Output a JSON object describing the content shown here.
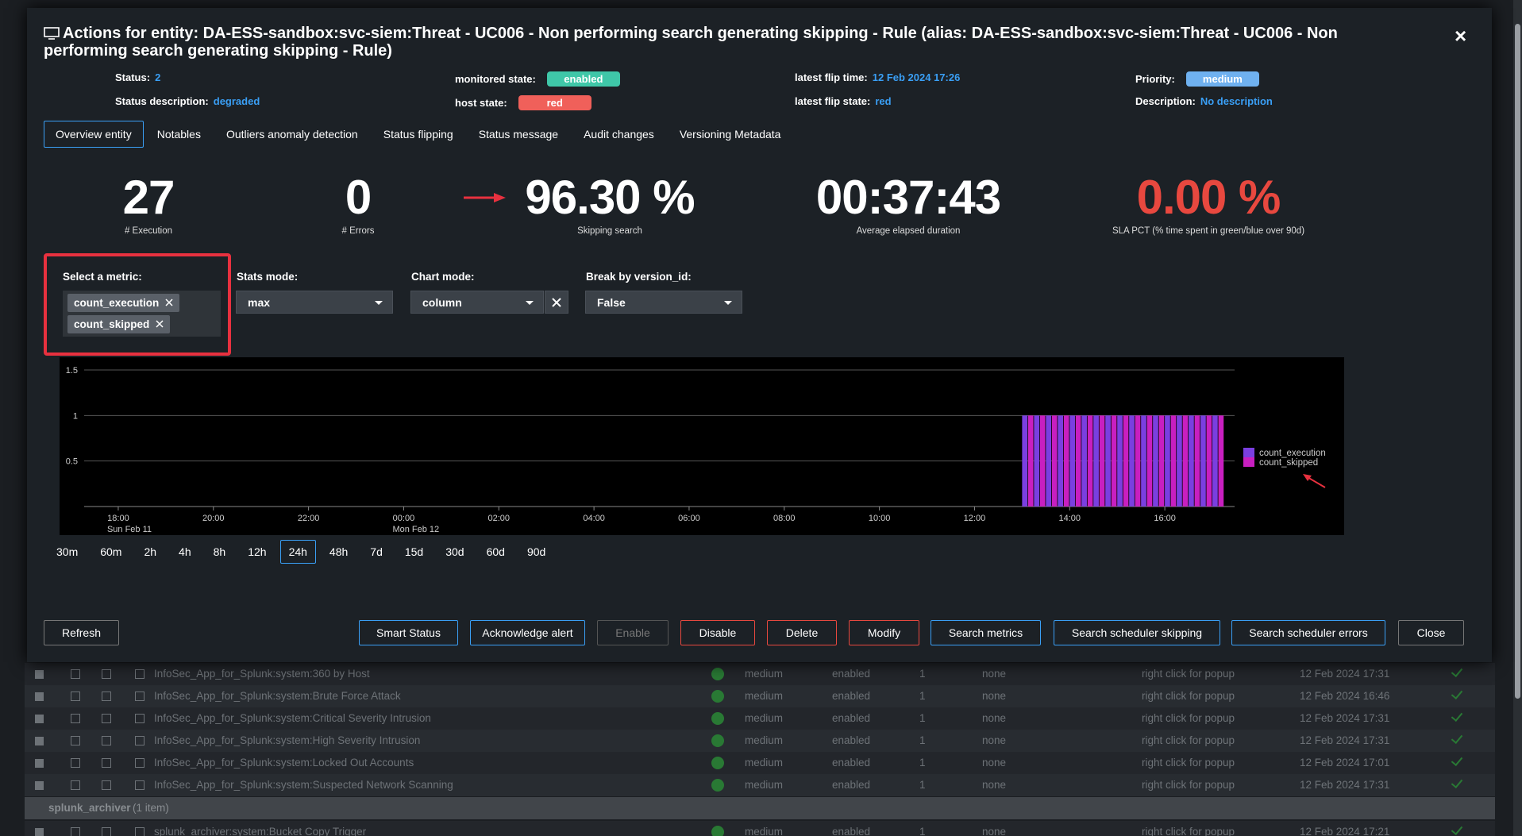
{
  "header": {
    "title": "Actions for entity: DA-ESS-sandbox:svc-siem:Threat - UC006 - Non performing search generating skipping - Rule (alias: DA-ESS-sandbox:svc-siem:Threat - UC006 - Non performing search generating skipping - Rule)",
    "close": "×"
  },
  "status": [
    {
      "label": "Status:",
      "value": "2"
    },
    {
      "label": "Status description:",
      "value": "degraded"
    },
    {
      "label": "monitored state:",
      "value": "enabled",
      "badge": "#3fc7a8"
    },
    {
      "label": "host state:",
      "value": "red",
      "badge": "#f0605a"
    },
    {
      "label": "latest flip time:",
      "value": "12 Feb 2024 17:26"
    },
    {
      "label": "latest flip state:",
      "value": "red"
    },
    {
      "label": "Priority:",
      "value": "medium",
      "badge": "#6fb1f0"
    },
    {
      "label": "Description:",
      "value": "No description"
    }
  ],
  "tabs": [
    "Overview entity",
    "Notables",
    "Outliers anomaly detection",
    "Status flipping",
    "Status message",
    "Audit changes",
    "Versioning Metadata"
  ],
  "active_tab": 0,
  "kpis": [
    {
      "value": "27",
      "label": "# Execution"
    },
    {
      "value": "0",
      "label": "# Errors"
    },
    {
      "value": "96.30 %",
      "label": "Skipping search"
    },
    {
      "value": "00:37:43",
      "label": "Average elapsed duration"
    },
    {
      "value": "0.00 %",
      "label": "SLA PCT (% time spent in green/blue over 90d)",
      "color": "#e8483f"
    }
  ],
  "controls": {
    "metric": {
      "label": "Select a metric:",
      "tags": [
        "count_execution",
        "count_skipped"
      ]
    },
    "stats_mode": {
      "label": "Stats mode:",
      "value": "max"
    },
    "chart_mode": {
      "label": "Chart mode:",
      "value": "column"
    },
    "break_by": {
      "label": "Break by version_id:",
      "value": "False"
    }
  },
  "chart_data": {
    "type": "bar",
    "x": [
      "Mon Feb 12 13:00",
      "Mon Feb 12 13:15",
      "Mon Feb 12 13:30",
      "Mon Feb 12 13:45",
      "Mon Feb 12 14:00",
      "Mon Feb 12 14:15",
      "Mon Feb 12 14:30",
      "Mon Feb 12 14:45",
      "Mon Feb 12 15:00",
      "Mon Feb 12 15:15",
      "Mon Feb 12 15:30",
      "Mon Feb 12 15:45",
      "Mon Feb 12 16:00",
      "Mon Feb 12 16:15",
      "Mon Feb 12 16:30",
      "Mon Feb 12 16:45",
      "Mon Feb 12 17:00"
    ],
    "series": [
      {
        "name": "count_execution",
        "color": "#7a3fe0",
        "values": [
          1,
          1,
          1,
          1,
          1,
          1,
          1,
          1,
          1,
          1,
          1,
          1,
          1,
          1,
          1,
          1,
          1
        ]
      },
      {
        "name": "count_skipped",
        "color": "#c81fc0",
        "values": [
          1,
          1,
          1,
          1,
          1,
          1,
          1,
          1,
          1,
          1,
          1,
          1,
          1,
          1,
          1,
          1,
          1
        ]
      }
    ],
    "xlim": [
      "Sun Feb 11 17:17",
      "Mon Feb 12 17:28"
    ],
    "xticks": [
      {
        "value": "Sun Feb 11 18:00",
        "label": "18:00"
      },
      {
        "value": "Sun Feb 11 20:00",
        "label": "20:00"
      },
      {
        "value": "Sun Feb 11 22:00",
        "label": "22:00"
      },
      {
        "value": "Mon Feb 12 00:00",
        "label": "00:00"
      },
      {
        "value": "Mon Feb 12 02:00",
        "label": "02:00"
      },
      {
        "value": "Mon Feb 12 04:00",
        "label": "04:00"
      },
      {
        "value": "Mon Feb 12 06:00",
        "label": "06:00"
      },
      {
        "value": "Mon Feb 12 08:00",
        "label": "08:00"
      },
      {
        "value": "Mon Feb 12 10:00",
        "label": "10:00"
      },
      {
        "value": "Mon Feb 12 12:00",
        "label": "12:00"
      },
      {
        "value": "Mon Feb 12 14:00",
        "label": "14:00"
      },
      {
        "value": "Mon Feb 12 16:00",
        "label": "16:00"
      }
    ],
    "xtick_dates": [
      {
        "value": "Sun Feb 11 18:00",
        "label": "Sun Feb 11"
      },
      {
        "value": "Mon Feb 12 00:00",
        "label": "Mon Feb 12"
      }
    ],
    "ylim": [
      0,
      1.5
    ],
    "yticks": [
      0.5,
      1,
      1.5
    ],
    "grid": true
  },
  "time_ranges": [
    "30m",
    "60m",
    "2h",
    "4h",
    "8h",
    "12h",
    "24h",
    "48h",
    "7d",
    "15d",
    "30d",
    "60d",
    "90d"
  ],
  "active_range": 6,
  "buttons": [
    "Refresh",
    "Smart Status",
    "Acknowledge alert",
    "Enable",
    "Disable",
    "Delete",
    "Modify",
    "Search metrics",
    "Search scheduler skipping",
    "Search scheduler errors",
    "Close"
  ],
  "table": {
    "rows": [
      [
        "InfoSec_App_for_Splunk:system:360 by Host",
        "medium",
        "enabled",
        "1",
        "none",
        "right click for popup",
        "12 Feb 2024 17:31"
      ],
      [
        "InfoSec_App_for_Splunk:system:Brute Force Attack",
        "medium",
        "enabled",
        "1",
        "none",
        "right click for popup",
        "12 Feb 2024 16:46"
      ],
      [
        "InfoSec_App_for_Splunk:system:Critical Severity Intrusion",
        "medium",
        "enabled",
        "1",
        "none",
        "right click for popup",
        "12 Feb 2024 17:31"
      ],
      [
        "InfoSec_App_for_Splunk:system:High Severity Intrusion",
        "medium",
        "enabled",
        "1",
        "none",
        "right click for popup",
        "12 Feb 2024 17:31"
      ],
      [
        "InfoSec_App_for_Splunk:system:Locked Out Accounts",
        "medium",
        "enabled",
        "1",
        "none",
        "right click for popup",
        "12 Feb 2024 17:01"
      ],
      [
        "InfoSec_App_for_Splunk:system:Suspected Network Scanning",
        "medium",
        "enabled",
        "1",
        "none",
        "right click for popup",
        "12 Feb 2024 17:31"
      ]
    ],
    "group": {
      "name": "splunk_archiver",
      "count": "(1 item)"
    },
    "after_group": [
      [
        "splunk_archiver:system:Bucket Copy Trigger",
        "medium",
        "enabled",
        "1",
        "none",
        "right click for popup",
        "12 Feb 2024 17:21"
      ]
    ]
  }
}
